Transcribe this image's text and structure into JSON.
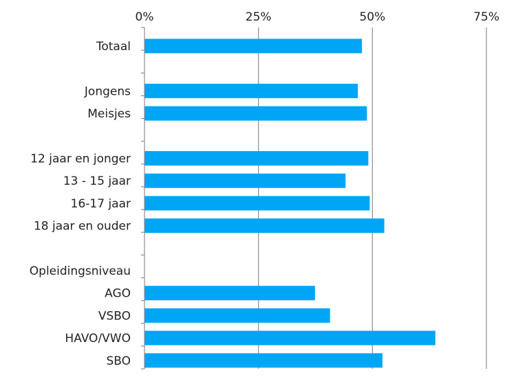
{
  "chart_data": {
    "type": "bar",
    "orientation": "horizontal",
    "title": "",
    "xlabel": "",
    "ylabel": "",
    "xlim": [
      0,
      75
    ],
    "xticks": [
      "0%",
      "25%",
      "50%",
      "75%"
    ],
    "xtick_values": [
      0,
      25,
      50,
      75
    ],
    "grid": true,
    "bar_color": "#00A6F5",
    "categories": [
      "Totaal",
      "",
      "Jongens",
      "Meisjes",
      "",
      "12 jaar en jonger",
      "13 - 15 jaar",
      "16-17 jaar",
      "18 jaar en ouder",
      "",
      "Opleidingsniveau",
      "AGO",
      "VSBO",
      "HAVO/VWO",
      "SBO"
    ],
    "values": [
      47.7,
      null,
      46.8,
      48.8,
      null,
      49.1,
      44.1,
      49.4,
      52.6,
      null,
      null,
      37.4,
      40.7,
      63.8,
      52.2
    ]
  }
}
